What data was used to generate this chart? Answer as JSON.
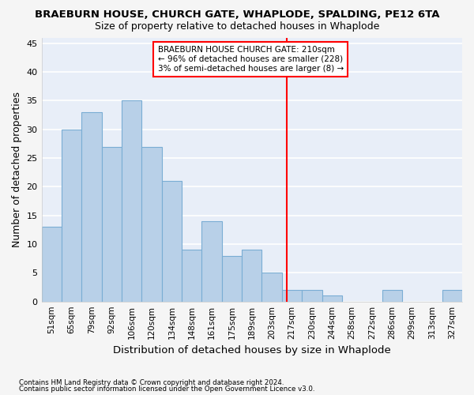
{
  "title": "BRAEBURN HOUSE, CHURCH GATE, WHAPLODE, SPALDING, PE12 6TA",
  "subtitle": "Size of property relative to detached houses in Whaplode",
  "xlabel": "Distribution of detached houses by size in Whaplode",
  "ylabel": "Number of detached properties",
  "categories": [
    "51sqm",
    "65sqm",
    "79sqm",
    "92sqm",
    "106sqm",
    "120sqm",
    "134sqm",
    "148sqm",
    "161sqm",
    "175sqm",
    "189sqm",
    "203sqm",
    "217sqm",
    "230sqm",
    "244sqm",
    "258sqm",
    "272sqm",
    "286sqm",
    "299sqm",
    "313sqm",
    "327sqm"
  ],
  "values": [
    13,
    30,
    33,
    27,
    35,
    27,
    21,
    9,
    14,
    8,
    9,
    5,
    2,
    2,
    1,
    0,
    0,
    2,
    0,
    0,
    2
  ],
  "bar_color": "#b8d0e8",
  "bar_edge_color": "#7aadd4",
  "ylim": [
    0,
    46
  ],
  "yticks": [
    0,
    5,
    10,
    15,
    20,
    25,
    30,
    35,
    40,
    45
  ],
  "vline_index": 11.73,
  "annotation_line1": "BRAEBURN HOUSE CHURCH GATE: 210sqm",
  "annotation_line2": "← 96% of detached houses are smaller (228)",
  "annotation_line3": "3% of semi-detached houses are larger (8) →",
  "footnote1": "Contains HM Land Registry data © Crown copyright and database right 2024.",
  "footnote2": "Contains public sector information licensed under the Open Government Licence v3.0.",
  "background_color": "#e8eef8",
  "grid_color": "#ffffff",
  "fig_bg_color": "#f5f5f5",
  "title_fontsize": 9.5,
  "subtitle_fontsize": 9,
  "ylabel_fontsize": 9,
  "xlabel_fontsize": 9.5
}
